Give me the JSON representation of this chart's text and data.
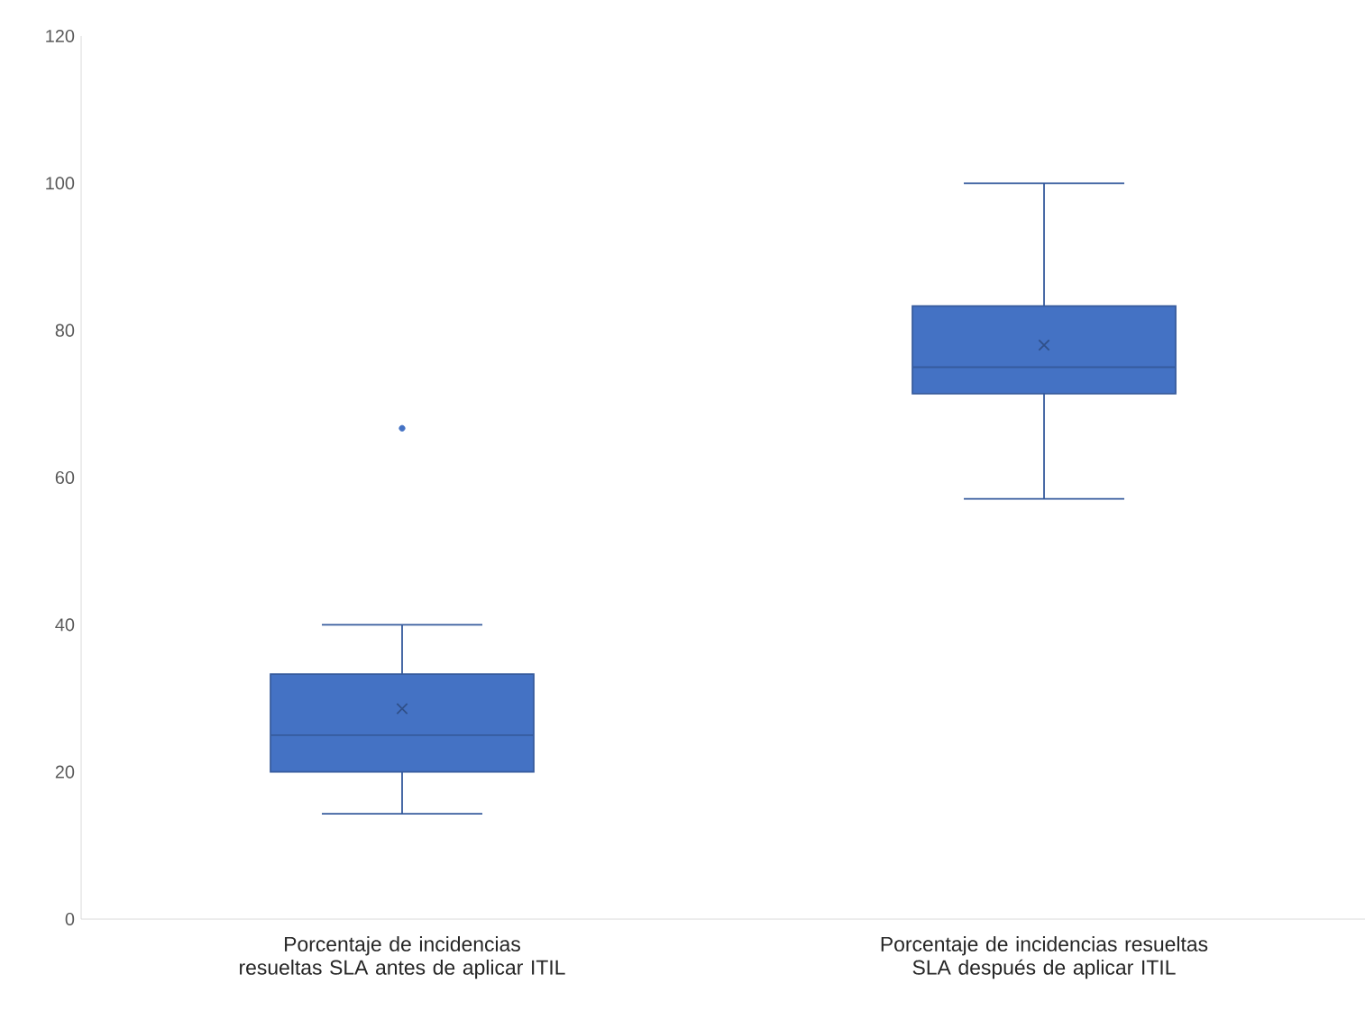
{
  "chart_data": {
    "type": "box",
    "categories": [
      "Porcentaje de incidencias resueltas SLA antes de aplicar ITIL",
      "Porcentaje de incidencias resueltas SLA después de aplicar ITIL"
    ],
    "boxes": [
      {
        "low": 14.3,
        "q1": 20,
        "median": 25,
        "q3": 33.3,
        "high": 40,
        "mean": 28.6,
        "outliers": [
          66.7
        ]
      },
      {
        "low": 57.1,
        "q1": 71.4,
        "median": 75,
        "q3": 83.3,
        "high": 100,
        "mean": 78
      }
    ],
    "color": "#4472c4",
    "ylim": [
      0,
      120
    ],
    "yticks": [
      0,
      20,
      40,
      60,
      80,
      100,
      120
    ]
  }
}
